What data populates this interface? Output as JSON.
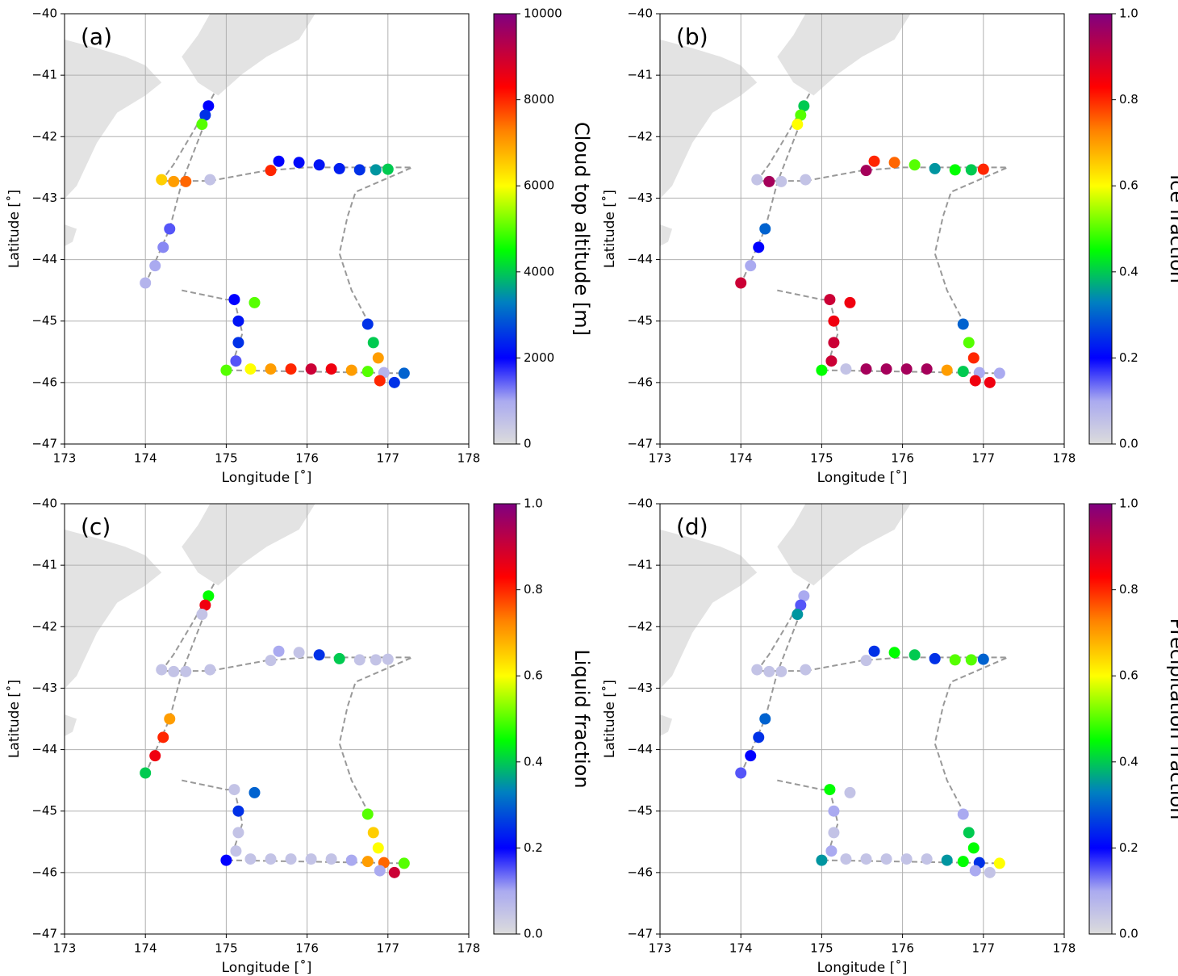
{
  "chart_data": [
    {
      "type": "scatter",
      "panel_label": "(a)",
      "xlabel": "Longitude [˚]",
      "ylabel": "Latitude [˚]",
      "clabel": "Cloud top altitude [m]",
      "xlim": [
        173,
        178
      ],
      "ylim": [
        -47,
        -40
      ],
      "xticks": [
        173,
        174,
        175,
        176,
        177,
        178
      ],
      "yticks": [
        {
          "value": -40,
          "label": "−40"
        },
        {
          "value": -41,
          "label": "−41"
        },
        {
          "value": -42,
          "label": "−42"
        },
        {
          "value": -43,
          "label": "−43"
        },
        {
          "value": -44,
          "label": "−44"
        },
        {
          "value": -45,
          "label": "−45"
        },
        {
          "value": -46,
          "label": "−46"
        },
        {
          "value": -47,
          "label": "−47"
        }
      ],
      "grid": true,
      "clim": [
        0,
        10000
      ],
      "cticks": [
        0,
        2000,
        4000,
        6000,
        8000,
        10000
      ],
      "track": {
        "x": [
          174.85,
          174.6,
          174.35,
          174.2,
          174.8,
          175.5,
          176.0,
          177.3,
          176.6,
          176.5,
          176.4,
          176.55,
          176.75,
          null,
          174.7,
          174.45,
          174.3,
          174.0,
          null,
          174.45,
          175.0,
          175.1,
          175.2,
          175.05,
          177.2
        ],
        "values": [
          -41.3,
          -41.9,
          -42.45,
          -42.72,
          -42.72,
          -42.55,
          -42.5,
          -42.5,
          -42.9,
          -43.3,
          -43.9,
          -44.5,
          -45.0,
          null,
          -41.9,
          -42.75,
          -43.5,
          -44.4,
          null,
          -44.5,
          -44.65,
          -44.65,
          -45.2,
          -45.8,
          -45.85
        ]
      },
      "x": [
        174.78,
        174.74,
        174.7,
        174.2,
        174.35,
        174.5,
        174.8,
        174.3,
        174.22,
        174.12,
        174.0,
        175.55,
        175.65,
        175.9,
        176.15,
        176.4,
        176.65,
        176.85,
        177.0,
        175.1,
        175.15,
        175.15,
        175.12,
        175.35,
        175.0,
        175.3,
        175.55,
        175.8,
        176.05,
        176.3,
        176.55,
        176.75,
        176.95,
        177.2,
        176.75,
        176.82,
        176.88,
        176.9,
        177.08
      ],
      "values": [
        -41.5,
        -41.65,
        -41.8,
        -42.7,
        -42.73,
        -42.73,
        -42.7,
        -43.5,
        -43.8,
        -44.1,
        -44.38,
        -42.55,
        -42.4,
        -42.42,
        -42.46,
        -42.52,
        -42.54,
        -42.54,
        -42.53,
        -44.65,
        -45.0,
        -45.35,
        -45.65,
        -44.7,
        -45.8,
        -45.78,
        -45.78,
        -45.78,
        -45.78,
        -45.78,
        -45.8,
        -45.82,
        -45.84,
        -45.85,
        -45.05,
        -45.35,
        -45.6,
        -45.97,
        -46.0
      ],
      "color_values": [
        2000,
        2500,
        5000,
        6500,
        7000,
        7500,
        500,
        1500,
        1200,
        1000,
        800,
        8000,
        2000,
        2100,
        2200,
        2300,
        2500,
        3500,
        4000,
        2000,
        2200,
        2500,
        1500,
        5000,
        5000,
        6000,
        7000,
        8000,
        9000,
        8500,
        7000,
        5000,
        800,
        3000,
        2500,
        4000,
        7000,
        8000,
        2500
      ]
    },
    {
      "type": "scatter",
      "panel_label": "(b)",
      "xlabel": "Longitude [˚]",
      "ylabel": "Latitude [˚]",
      "clabel": "Ice fraction",
      "xlim": [
        173,
        178
      ],
      "ylim": [
        -47,
        -40
      ],
      "xticks": [
        173,
        174,
        175,
        176,
        177,
        178
      ],
      "yticks": [
        {
          "value": -40,
          "label": "−40"
        },
        {
          "value": -41,
          "label": "−41"
        },
        {
          "value": -42,
          "label": "−42"
        },
        {
          "value": -43,
          "label": "−43"
        },
        {
          "value": -44,
          "label": "−44"
        },
        {
          "value": -45,
          "label": "−45"
        },
        {
          "value": -46,
          "label": "−46"
        },
        {
          "value": -47,
          "label": "−47"
        }
      ],
      "grid": true,
      "clim": [
        0,
        1
      ],
      "cticks": [
        {
          "value": 0,
          "label": "0.0"
        },
        0.2,
        0.4,
        0.6,
        0.8,
        {
          "value": 1,
          "label": "1.0"
        }
      ],
      "track": {
        "x": [
          174.85,
          174.6,
          174.35,
          174.2,
          174.8,
          175.5,
          176.0,
          177.3,
          176.6,
          176.5,
          176.4,
          176.55,
          176.75,
          null,
          174.7,
          174.45,
          174.3,
          174.0,
          null,
          174.45,
          175.0,
          175.1,
          175.2,
          175.05,
          177.2
        ],
        "values": [
          -41.3,
          -41.9,
          -42.45,
          -42.72,
          -42.72,
          -42.55,
          -42.5,
          -42.5,
          -42.9,
          -43.3,
          -43.9,
          -44.5,
          -45.0,
          null,
          -41.9,
          -42.75,
          -43.5,
          -44.4,
          null,
          -44.5,
          -44.65,
          -44.65,
          -45.2,
          -45.8,
          -45.85
        ]
      },
      "x": [
        174.78,
        174.74,
        174.7,
        174.2,
        174.35,
        174.5,
        174.8,
        174.3,
        174.22,
        174.12,
        174.0,
        175.55,
        175.65,
        175.9,
        176.15,
        176.4,
        176.65,
        176.85,
        177.0,
        175.1,
        175.15,
        175.15,
        175.12,
        175.35,
        175.0,
        175.3,
        175.55,
        175.8,
        176.05,
        176.3,
        176.55,
        176.75,
        176.95,
        177.2,
        176.75,
        176.82,
        176.88,
        176.9,
        177.08
      ],
      "values": [
        -41.5,
        -41.65,
        -41.8,
        -42.7,
        -42.73,
        -42.73,
        -42.7,
        -43.5,
        -43.8,
        -44.1,
        -44.38,
        -42.55,
        -42.4,
        -42.42,
        -42.46,
        -42.52,
        -42.54,
        -42.54,
        -42.53,
        -44.65,
        -45.0,
        -45.35,
        -45.65,
        -44.7,
        -45.8,
        -45.78,
        -45.78,
        -45.78,
        -45.78,
        -45.78,
        -45.8,
        -45.82,
        -45.84,
        -45.85,
        -45.05,
        -45.35,
        -45.6,
        -45.97,
        -46.0
      ],
      "color_values": [
        0.4,
        0.5,
        0.6,
        0.05,
        0.95,
        0.05,
        0.05,
        0.3,
        0.2,
        0.1,
        0.9,
        0.95,
        0.8,
        0.75,
        0.5,
        0.35,
        0.45,
        0.4,
        0.8,
        0.9,
        0.85,
        0.9,
        0.9,
        0.85,
        0.45,
        0.05,
        0.95,
        0.95,
        0.95,
        0.95,
        0.7,
        0.4,
        0.1,
        0.1,
        0.3,
        0.5,
        0.8,
        0.85,
        0.85
      ]
    },
    {
      "type": "scatter",
      "panel_label": "(c)",
      "xlabel": "Longitude [˚]",
      "ylabel": "Latitude [˚]",
      "clabel": "Liquid fraction",
      "xlim": [
        173,
        178
      ],
      "ylim": [
        -47,
        -40
      ],
      "xticks": [
        173,
        174,
        175,
        176,
        177,
        178
      ],
      "yticks": [
        {
          "value": -40,
          "label": "−40"
        },
        {
          "value": -41,
          "label": "−41"
        },
        {
          "value": -42,
          "label": "−42"
        },
        {
          "value": -43,
          "label": "−43"
        },
        {
          "value": -44,
          "label": "−44"
        },
        {
          "value": -45,
          "label": "−45"
        },
        {
          "value": -46,
          "label": "−46"
        },
        {
          "value": -47,
          "label": "−47"
        }
      ],
      "grid": true,
      "clim": [
        0,
        1
      ],
      "cticks": [
        {
          "value": 0,
          "label": "0.0"
        },
        0.2,
        0.4,
        0.6,
        0.8,
        {
          "value": 1,
          "label": "1.0"
        }
      ],
      "track": {
        "x": [
          174.85,
          174.6,
          174.35,
          174.2,
          174.8,
          175.5,
          176.0,
          177.3,
          176.6,
          176.5,
          176.4,
          176.55,
          176.75,
          null,
          174.7,
          174.45,
          174.3,
          174.0,
          null,
          174.45,
          175.0,
          175.1,
          175.2,
          175.05,
          177.2
        ],
        "values": [
          -41.3,
          -41.9,
          -42.45,
          -42.72,
          -42.72,
          -42.55,
          -42.5,
          -42.5,
          -42.9,
          -43.3,
          -43.9,
          -44.5,
          -45.0,
          null,
          -41.9,
          -42.75,
          -43.5,
          -44.4,
          null,
          -44.5,
          -44.65,
          -44.65,
          -45.2,
          -45.8,
          -45.85
        ]
      },
      "x": [
        174.78,
        174.74,
        174.7,
        174.2,
        174.35,
        174.5,
        174.8,
        174.3,
        174.22,
        174.12,
        174.0,
        175.55,
        175.65,
        175.9,
        176.15,
        176.4,
        176.65,
        176.85,
        177.0,
        175.1,
        175.15,
        175.15,
        175.12,
        175.35,
        175.0,
        175.3,
        175.55,
        175.8,
        176.05,
        176.3,
        176.55,
        176.75,
        176.95,
        177.2,
        176.75,
        176.82,
        176.88,
        176.9,
        177.08
      ],
      "values": [
        -41.5,
        -41.65,
        -41.8,
        -42.7,
        -42.73,
        -42.73,
        -42.7,
        -43.5,
        -43.8,
        -44.1,
        -44.38,
        -42.55,
        -42.4,
        -42.42,
        -42.46,
        -42.52,
        -42.54,
        -42.54,
        -42.53,
        -44.65,
        -45.0,
        -45.35,
        -45.65,
        -44.7,
        -45.8,
        -45.78,
        -45.78,
        -45.78,
        -45.78,
        -45.78,
        -45.8,
        -45.82,
        -45.84,
        -45.85,
        -45.05,
        -45.35,
        -45.6,
        -45.97,
        -46.0
      ],
      "color_values": [
        0.45,
        0.85,
        0.05,
        0.05,
        0.05,
        0.05,
        0.05,
        0.7,
        0.8,
        0.85,
        0.4,
        0.05,
        0.1,
        0.05,
        0.25,
        0.4,
        0.05,
        0.05,
        0.05,
        0.05,
        0.25,
        0.05,
        0.05,
        0.3,
        0.2,
        0.05,
        0.05,
        0.05,
        0.05,
        0.05,
        0.1,
        0.7,
        0.75,
        0.5,
        0.5,
        0.65,
        0.6,
        0.1,
        0.9
      ]
    },
    {
      "type": "scatter",
      "panel_label": "(d)",
      "xlabel": "Longitude [˚]",
      "ylabel": "Latitude [˚]",
      "clabel": "Precipitation fraction",
      "xlim": [
        173,
        178
      ],
      "ylim": [
        -47,
        -40
      ],
      "xticks": [
        173,
        174,
        175,
        176,
        177,
        178
      ],
      "yticks": [
        {
          "value": -40,
          "label": "−40"
        },
        {
          "value": -41,
          "label": "−41"
        },
        {
          "value": -42,
          "label": "−42"
        },
        {
          "value": -43,
          "label": "−43"
        },
        {
          "value": -44,
          "label": "−44"
        },
        {
          "value": -45,
          "label": "−45"
        },
        {
          "value": -46,
          "label": "−46"
        },
        {
          "value": -47,
          "label": "−47"
        }
      ],
      "grid": true,
      "clim": [
        0,
        1
      ],
      "cticks": [
        {
          "value": 0,
          "label": "0.0"
        },
        0.2,
        0.4,
        0.6,
        0.8,
        {
          "value": 1,
          "label": "1.0"
        }
      ],
      "track": {
        "x": [
          174.85,
          174.6,
          174.35,
          174.2,
          174.8,
          175.5,
          176.0,
          177.3,
          176.6,
          176.5,
          176.4,
          176.55,
          176.75,
          null,
          174.7,
          174.45,
          174.3,
          174.0,
          null,
          174.45,
          175.0,
          175.1,
          175.2,
          175.05,
          177.2
        ],
        "values": [
          -41.3,
          -41.9,
          -42.45,
          -42.72,
          -42.72,
          -42.55,
          -42.5,
          -42.5,
          -42.9,
          -43.3,
          -43.9,
          -44.5,
          -45.0,
          null,
          -41.9,
          -42.75,
          -43.5,
          -44.4,
          null,
          -44.5,
          -44.65,
          -44.65,
          -45.2,
          -45.8,
          -45.85
        ]
      },
      "x": [
        174.78,
        174.74,
        174.7,
        174.2,
        174.35,
        174.5,
        174.8,
        174.3,
        174.22,
        174.12,
        174.0,
        175.55,
        175.65,
        175.9,
        176.15,
        176.4,
        176.65,
        176.85,
        177.0,
        175.1,
        175.15,
        175.15,
        175.12,
        175.35,
        175.0,
        175.3,
        175.55,
        175.8,
        176.05,
        176.3,
        176.55,
        176.75,
        176.95,
        177.2,
        176.75,
        176.82,
        176.88,
        176.9,
        177.08
      ],
      "values": [
        -41.5,
        -41.65,
        -41.8,
        -42.7,
        -42.73,
        -42.73,
        -42.7,
        -43.5,
        -43.8,
        -44.1,
        -44.38,
        -42.55,
        -42.4,
        -42.42,
        -42.46,
        -42.52,
        -42.54,
        -42.54,
        -42.53,
        -44.65,
        -45.0,
        -45.35,
        -45.65,
        -44.7,
        -45.8,
        -45.78,
        -45.78,
        -45.78,
        -45.78,
        -45.78,
        -45.8,
        -45.82,
        -45.84,
        -45.85,
        -45.05,
        -45.35,
        -45.6,
        -45.97,
        -46.0
      ],
      "color_values": [
        0.1,
        0.15,
        0.35,
        0.05,
        0.05,
        0.05,
        0.05,
        0.3,
        0.25,
        0.2,
        0.15,
        0.05,
        0.25,
        0.45,
        0.4,
        0.25,
        0.5,
        0.5,
        0.3,
        0.45,
        0.1,
        0.05,
        0.1,
        0.05,
        0.35,
        0.05,
        0.05,
        0.05,
        0.05,
        0.05,
        0.35,
        0.45,
        0.25,
        0.6,
        0.1,
        0.4,
        0.45,
        0.1,
        0.05
      ]
    }
  ]
}
